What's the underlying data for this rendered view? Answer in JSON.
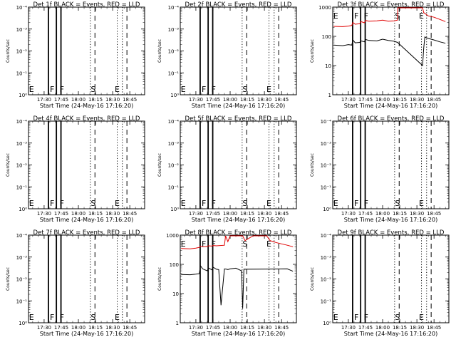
{
  "common": {
    "xlabel": "Start Time (24-May-16 17:16:20)",
    "ylabel": "Counts/sec",
    "x_tick_labels": [
      "17:30",
      "17:45",
      "18:00",
      "18:15",
      "18:30",
      "18:45"
    ],
    "x_tick_minutes": [
      30,
      45,
      60,
      75,
      90,
      105
    ],
    "x_range_minutes": [
      16.33,
      118
    ],
    "solid_markers_minutes": [
      33.5,
      34,
      40.5,
      41,
      44.5,
      45
    ],
    "dashed_markers_minutes": [
      74.5,
      102.5
    ],
    "dotted_markers_minutes": [
      70.5,
      94,
      98.5
    ],
    "event_labels": [
      {
        "text": "E",
        "minute": 19
      },
      {
        "text": "F",
        "minute": 37
      },
      {
        "text": "F",
        "minute": 45.5
      },
      {
        "text": "S",
        "minute": 73
      },
      {
        "text": "E",
        "minute": 94
      }
    ],
    "colors": {
      "events": "#000000",
      "lld": "#e00000",
      "axes": "#000000"
    }
  },
  "chart_data": [
    {
      "type": "line",
      "title": "Det 1f BLACK = Events, RED = LLD",
      "yscale": "log",
      "y_tick_labels": [
        "10⁰",
        "10⁻¹",
        "10⁻²",
        "10⁻³",
        "10⁻⁴"
      ],
      "series": []
    },
    {
      "type": "line",
      "title": "Det 2f BLACK = Events, RED = LLD",
      "yscale": "log",
      "y_tick_labels": [
        "10⁰",
        "10⁻¹",
        "10⁻²",
        "10⁻³",
        "10⁻⁴"
      ],
      "series": []
    },
    {
      "type": "line",
      "title": "Det 3f BLACK = Events, RED = LLD",
      "yscale": "log",
      "y_tick_labels": [
        "1",
        "10",
        "100",
        "1000"
      ],
      "ylim": [
        1,
        1000
      ],
      "series": [
        {
          "color": "#e00000",
          "x": [
            17,
            25,
            30,
            33,
            34,
            36,
            40,
            41,
            44,
            45,
            48,
            55,
            60,
            65,
            70,
            73,
            73.2,
            80,
            86,
            87,
            93,
            95,
            96,
            100,
            105,
            110,
            115
          ],
          "y": [
            220,
            215,
            225,
            235,
            300,
            260,
            270,
            320,
            290,
            350,
            330,
            340,
            360,
            330,
            340,
            360,
            1050,
            1000,
            1000,
            1050,
            1050,
            1050,
            650,
            500,
            450,
            380,
            320
          ]
        },
        {
          "color": "#000000",
          "x": [
            17,
            25,
            30,
            33,
            34,
            36,
            40,
            41,
            44,
            45,
            48,
            55,
            60,
            65,
            70,
            73,
            95,
            96,
            97,
            100,
            105,
            110,
            115
          ],
          "y": [
            50,
            48,
            52,
            50,
            75,
            60,
            62,
            70,
            65,
            78,
            72,
            70,
            80,
            72,
            68,
            62,
            10,
            40,
            95,
            85,
            75,
            65,
            58
          ]
        }
      ]
    },
    {
      "type": "line",
      "title": "Det 4f BLACK = Events, RED = LLD",
      "yscale": "log",
      "y_tick_labels": [
        "10⁰",
        "10⁻¹",
        "10⁻²",
        "10⁻³",
        "10⁻⁴"
      ],
      "series": []
    },
    {
      "type": "line",
      "title": "Det 5f BLACK = Events, RED = LLD",
      "yscale": "log",
      "y_tick_labels": [
        "10⁰",
        "10⁻¹",
        "10⁻²",
        "10⁻³",
        "10⁻⁴"
      ],
      "series": []
    },
    {
      "type": "line",
      "title": "Det 6f BLACK = Events, RED = LLD",
      "yscale": "log",
      "y_tick_labels": [
        "10⁰",
        "10⁻¹",
        "10⁻²",
        "10⁻³",
        "10⁻⁴"
      ],
      "series": []
    },
    {
      "type": "line",
      "title": "Det 7f BLACK = Events, RED = LLD",
      "yscale": "log",
      "y_tick_labels": [
        "10⁰",
        "10⁻¹",
        "10⁻²",
        "10⁻³",
        "10⁻⁴"
      ],
      "series": []
    },
    {
      "type": "line",
      "title": "Det 8f BLACK = Events, RED = LLD",
      "yscale": "log",
      "y_tick_labels": [
        "1",
        "10",
        "100",
        "1000"
      ],
      "ylim": [
        1,
        1000
      ],
      "series": [
        {
          "color": "#e00000",
          "x": [
            17,
            25,
            30,
            33,
            34,
            36,
            40,
            41,
            44,
            45,
            48,
            55,
            56,
            58,
            60,
            65,
            70,
            71,
            73,
            80,
            88,
            90,
            92,
            95,
            100,
            105,
            110,
            115
          ],
          "y": [
            350,
            340,
            360,
            380,
            420,
            400,
            410,
            430,
            420,
            440,
            430,
            450,
            1000,
            600,
            1000,
            1000,
            1000,
            1000,
            650,
            1000,
            1000,
            1000,
            1000,
            650,
            560,
            500,
            450,
            400
          ]
        },
        {
          "color": "#000000",
          "x": [
            17,
            25,
            30,
            33,
            34,
            36,
            40,
            41,
            44,
            45,
            48,
            50,
            52,
            55,
            57,
            58,
            60,
            65,
            70,
            71,
            72,
            110,
            112,
            115
          ],
          "y": [
            45,
            44,
            46,
            48,
            90,
            70,
            60,
            75,
            65,
            80,
            68,
            66,
            4,
            70,
            68,
            66,
            70,
            74,
            60,
            3,
            68,
            70,
            65,
            58
          ]
        }
      ]
    },
    {
      "type": "line",
      "title": "Det 9f BLACK = Events, RED = LLD",
      "yscale": "log",
      "y_tick_labels": [
        "10⁰",
        "10⁻¹",
        "10⁻²",
        "10⁻³",
        "10⁻⁴"
      ],
      "series": []
    }
  ]
}
